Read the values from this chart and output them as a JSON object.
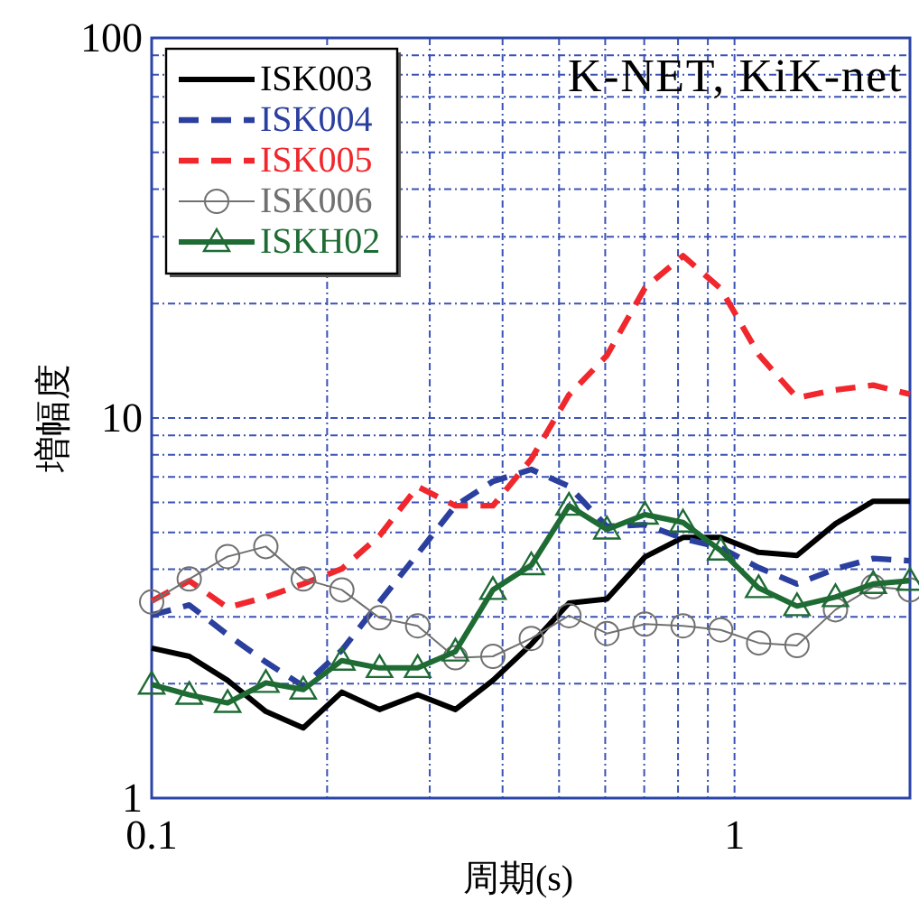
{
  "chart_data": {
    "type": "line",
    "xlabel": "周期(s)",
    "ylabel": "増幅度",
    "log": "xy",
    "xlim": [
      0.1,
      2
    ],
    "ylim": [
      1,
      100
    ],
    "xticks": [
      0.1,
      {
        "value": 0.2,
        "label": null
      },
      {
        "value": 0.3,
        "label": null
      },
      {
        "value": 0.4,
        "label": null
      },
      {
        "value": 0.5,
        "label": null
      },
      {
        "value": 0.6,
        "label": null
      },
      {
        "value": 0.7,
        "label": null
      },
      {
        "value": 0.8,
        "label": null
      },
      {
        "value": 0.9,
        "label": null
      },
      1
    ],
    "yticks": [
      1,
      {
        "value": 2,
        "label": null
      },
      {
        "value": 3,
        "label": null
      },
      {
        "value": 4,
        "label": null
      },
      {
        "value": 5,
        "label": null
      },
      {
        "value": 6,
        "label": null
      },
      {
        "value": 7,
        "label": null
      },
      {
        "value": 8,
        "label": null
      },
      {
        "value": 9,
        "label": null
      },
      10,
      {
        "value": 20,
        "label": null
      },
      {
        "value": 30,
        "label": null
      },
      {
        "value": 40,
        "label": null
      },
      {
        "value": 50,
        "label": null
      },
      {
        "value": 60,
        "label": null
      },
      {
        "value": 70,
        "label": null
      },
      {
        "value": 80,
        "label": null
      },
      {
        "value": 90,
        "label": null
      },
      100
    ],
    "grid": true,
    "legend": "top left",
    "annotations": [
      "K-NET, KiK-net"
    ],
    "x": [
      0.1,
      0.116,
      0.135,
      0.157,
      0.182,
      0.212,
      0.246,
      0.286,
      0.332,
      0.385,
      0.448,
      0.52,
      0.604,
      0.702,
      0.816,
      0.947,
      1.1,
      1.28,
      1.49,
      1.73,
      2
    ],
    "series": [
      {
        "name": "ISK003",
        "color": "#000000",
        "marker": "none",
        "line_style": "solid",
        "values": [
          2.48,
          2.36,
          2.04,
          1.69,
          1.53,
          1.9,
          1.71,
          1.87,
          1.71,
          2.04,
          2.54,
          3.26,
          3.34,
          4.31,
          4.85,
          4.85,
          4.43,
          4.35,
          5.27,
          6.04,
          6.04
        ]
      },
      {
        "name": "ISK004",
        "color": "#2b3f9e",
        "marker": "none",
        "line_style": "dashed",
        "values": [
          3.03,
          3.22,
          2.69,
          2.28,
          1.97,
          2.45,
          3.28,
          4.39,
          5.88,
          6.81,
          7.32,
          6.61,
          5.18,
          5.24,
          4.82,
          4.56,
          4.04,
          3.66,
          4.01,
          4.27,
          4.21
        ]
      },
      {
        "name": "ISK005",
        "color": "#f0282d",
        "marker": "none",
        "line_style": "dashed",
        "values": [
          3.3,
          3.73,
          3.17,
          3.38,
          3.66,
          4.01,
          4.9,
          6.6,
          5.88,
          5.88,
          7.8,
          11.5,
          14.6,
          22,
          26.7,
          21.9,
          14.7,
          11.3,
          11.85,
          12.2,
          11.55
        ]
      },
      {
        "name": "ISK006",
        "color": "#707070",
        "marker": "circle",
        "line_style": "solid",
        "values": [
          3.28,
          3.77,
          4.32,
          4.59,
          3.77,
          3.53,
          2.98,
          2.84,
          2.34,
          2.36,
          2.63,
          3.02,
          2.71,
          2.87,
          2.84,
          2.77,
          2.56,
          2.52,
          3.13,
          3.6,
          3.53
        ]
      },
      {
        "name": "ISKH02",
        "color": "#1e6b34",
        "marker": "triangle",
        "line_style": "solid",
        "values": [
          1.99,
          1.87,
          1.78,
          2.01,
          1.93,
          2.3,
          2.2,
          2.2,
          2.43,
          3.53,
          4.1,
          5.88,
          5.09,
          5.57,
          5.31,
          4.48,
          3.57,
          3.2,
          3.38,
          3.66,
          3.73
        ]
      }
    ]
  }
}
